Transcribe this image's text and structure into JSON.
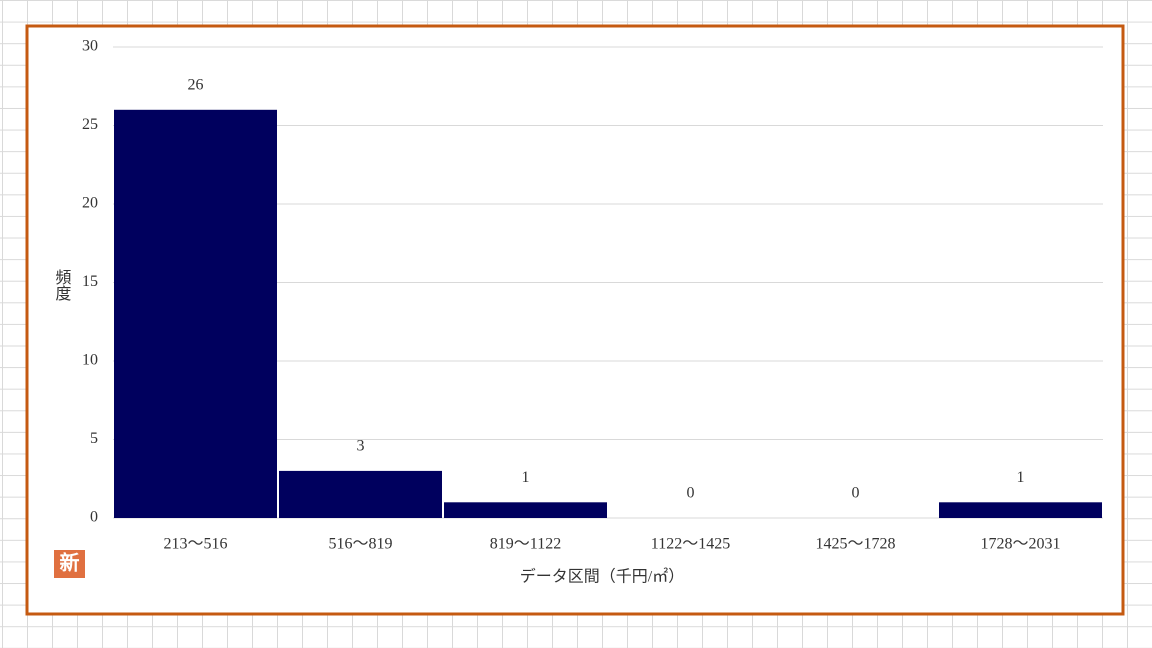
{
  "chart_data": {
    "type": "bar",
    "categories": [
      "213～516",
      "516～819",
      "819～1122",
      "1122～1425",
      "1425～1728",
      "1728～2031"
    ],
    "values": [
      26,
      3,
      1,
      0,
      0,
      1
    ],
    "color": "#00005e",
    "ylim": [
      0,
      30
    ],
    "yticks": [
      0,
      5,
      10,
      15,
      20,
      25,
      30
    ],
    "grid": true,
    "y_label": "頻度",
    "x_label": "データ区間（千円/㎡）",
    "badge": "新"
  }
}
